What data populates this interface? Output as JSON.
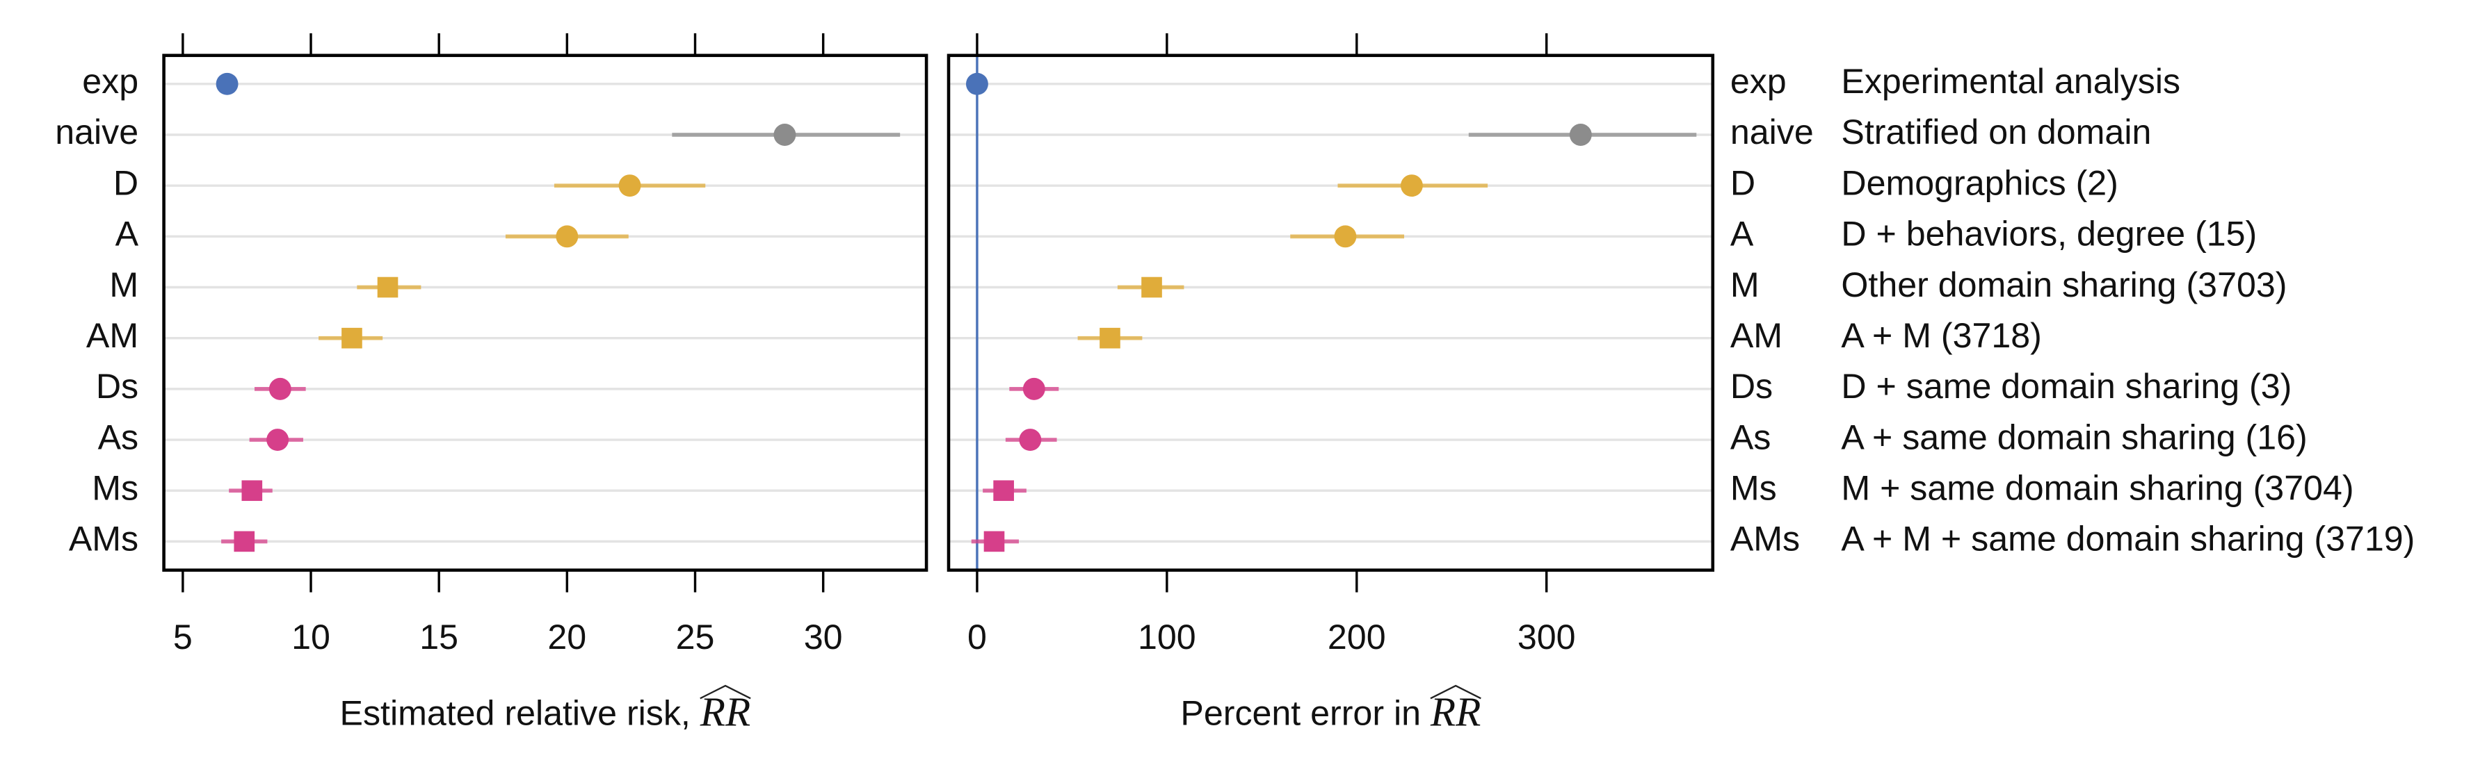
{
  "chart_data": [
    {
      "type": "dot",
      "categories": [
        "exp",
        "naive",
        "D",
        "A",
        "M",
        "AM",
        "Ds",
        "As",
        "Ms",
        "AMs"
      ],
      "values": [
        6.73,
        28.5,
        22.45,
        20.0,
        13.0,
        11.6,
        8.8,
        8.7,
        7.7,
        7.4
      ],
      "lower": [
        6.6,
        24.1,
        19.5,
        17.6,
        11.8,
        10.3,
        7.8,
        7.6,
        6.8,
        6.5
      ],
      "upper": [
        6.9,
        33.0,
        25.4,
        22.4,
        14.3,
        12.8,
        9.8,
        9.7,
        8.5,
        8.3
      ],
      "colors": [
        "#4a72b8",
        "#8c8c8c",
        "#e0ac3a",
        "#e0ac3a",
        "#e0ac3a",
        "#e0ac3a",
        "#d63f8a",
        "#d63f8a",
        "#d63f8a",
        "#d63f8a"
      ],
      "markers": [
        "circle",
        "circle",
        "circle",
        "circle",
        "square",
        "square",
        "circle",
        "circle",
        "square",
        "square"
      ],
      "xlim": [
        4.26,
        34.03
      ],
      "xticks": [
        5,
        10,
        15,
        20,
        25,
        30
      ],
      "x_label": "Estimated relative risk, ",
      "x_label_math": "RR",
      "grid": true
    },
    {
      "type": "dot",
      "categories": [
        "exp",
        "naive",
        "D",
        "A",
        "M",
        "AM",
        "Ds",
        "As",
        "Ms",
        "AMs"
      ],
      "category_descriptions": [
        "Experimental analysis",
        "Stratified on domain",
        "Demographics (2)",
        "D + behaviors, degree (15)",
        "Other domain sharing (3703)",
        "A + M (3718)",
        "D + same domain sharing (3)",
        "A + same domain sharing (16)",
        "M + same domain sharing (3704)",
        "A + M + same domain sharing (3719)"
      ],
      "values": [
        0,
        318,
        229,
        194,
        92,
        70,
        30,
        28,
        14,
        9
      ],
      "lower": [
        -1,
        259,
        190,
        165,
        74,
        53,
        17,
        15,
        3,
        -3
      ],
      "upper": [
        1,
        379,
        269,
        225,
        109,
        87,
        43,
        42,
        26,
        22
      ],
      "colors": [
        "#4a72b8",
        "#8c8c8c",
        "#e0ac3a",
        "#e0ac3a",
        "#e0ac3a",
        "#e0ac3a",
        "#d63f8a",
        "#d63f8a",
        "#d63f8a",
        "#d63f8a"
      ],
      "markers": [
        "circle",
        "circle",
        "circle",
        "circle",
        "square",
        "square",
        "circle",
        "circle",
        "square",
        "square"
      ],
      "xlim": [
        -15.0,
        387.6
      ],
      "xticks": [
        0,
        100,
        200,
        300
      ],
      "x_label": "Percent error in ",
      "x_label_math": "RR",
      "grid": true,
      "ref_line": 0,
      "ref_color": "#4a72b8"
    }
  ]
}
